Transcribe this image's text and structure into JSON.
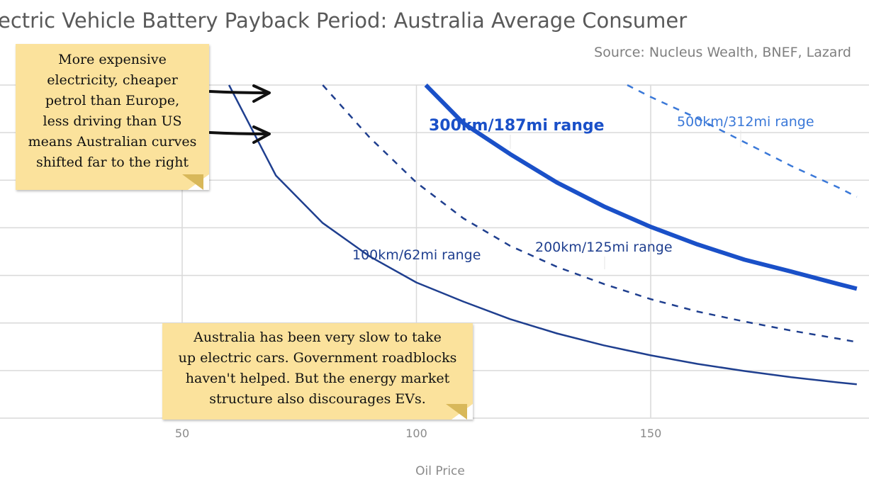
{
  "chart_data": {
    "type": "line",
    "title": "ectric Vehicle Battery Payback Period: Australia Average Consumer",
    "source": "Source: Nucleus Wealth, BNEF, Lazard",
    "xlabel": "Oil Price",
    "ylabel": "",
    "xlim": [
      10,
      194
    ],
    "ylim": [
      0,
      7
    ],
    "x_ticks": [
      50,
      100,
      150
    ],
    "x_tick_labels": [
      "50",
      "100",
      "150"
    ],
    "y_gridlines": [
      1,
      2,
      3,
      4,
      5,
      6,
      7
    ],
    "grid": true,
    "series": [
      {
        "name": "100km/62mi range",
        "style": "solid",
        "color": "#1f3f8f",
        "x": [
          60,
          70,
          80,
          90,
          100,
          110,
          120,
          130,
          140,
          150,
          160,
          170,
          180,
          190,
          194
        ],
        "y": [
          7.0,
          5.1,
          4.1,
          3.4,
          2.85,
          2.45,
          2.08,
          1.78,
          1.53,
          1.32,
          1.14,
          0.99,
          0.86,
          0.75,
          0.71
        ]
      },
      {
        "name": "200km/125mi range",
        "style": "dashed",
        "color": "#1f3f8f",
        "x": [
          80,
          90,
          100,
          110,
          120,
          130,
          140,
          150,
          160,
          170,
          180,
          190,
          194
        ],
        "y": [
          7.0,
          5.9,
          4.95,
          4.2,
          3.62,
          3.18,
          2.82,
          2.5,
          2.24,
          2.03,
          1.84,
          1.67,
          1.6
        ]
      },
      {
        "name": "300km/187mi range",
        "style": "solid-bold",
        "color": "#1a50c8",
        "x": [
          102,
          110,
          120,
          130,
          140,
          150,
          160,
          170,
          180,
          190,
          194
        ],
        "y": [
          7.0,
          6.2,
          5.55,
          4.95,
          4.45,
          4.02,
          3.65,
          3.33,
          3.08,
          2.82,
          2.72
        ]
      },
      {
        "name": "500km/312mi range",
        "style": "dashed",
        "color": "#3a78d8",
        "x": [
          145,
          150,
          160,
          170,
          180,
          190,
          194
        ],
        "y": [
          7.0,
          6.75,
          6.3,
          5.8,
          5.3,
          4.85,
          4.65
        ]
      }
    ],
    "series_label_positions": [
      "below-middle",
      "right-middle",
      "upper-left",
      "upper-right"
    ],
    "annotations": [
      {
        "lines": [
          "More expensive",
          "electricity, cheaper",
          "petrol than Europe,",
          "less driving than US",
          "means Australian curves",
          "shifted far to the right"
        ]
      },
      {
        "lines": [
          "Australia has been very slow to take",
          "up electric cars. Government roadblocks",
          "haven't helped. But the energy market",
          "structure also discourages EVs."
        ]
      }
    ]
  }
}
